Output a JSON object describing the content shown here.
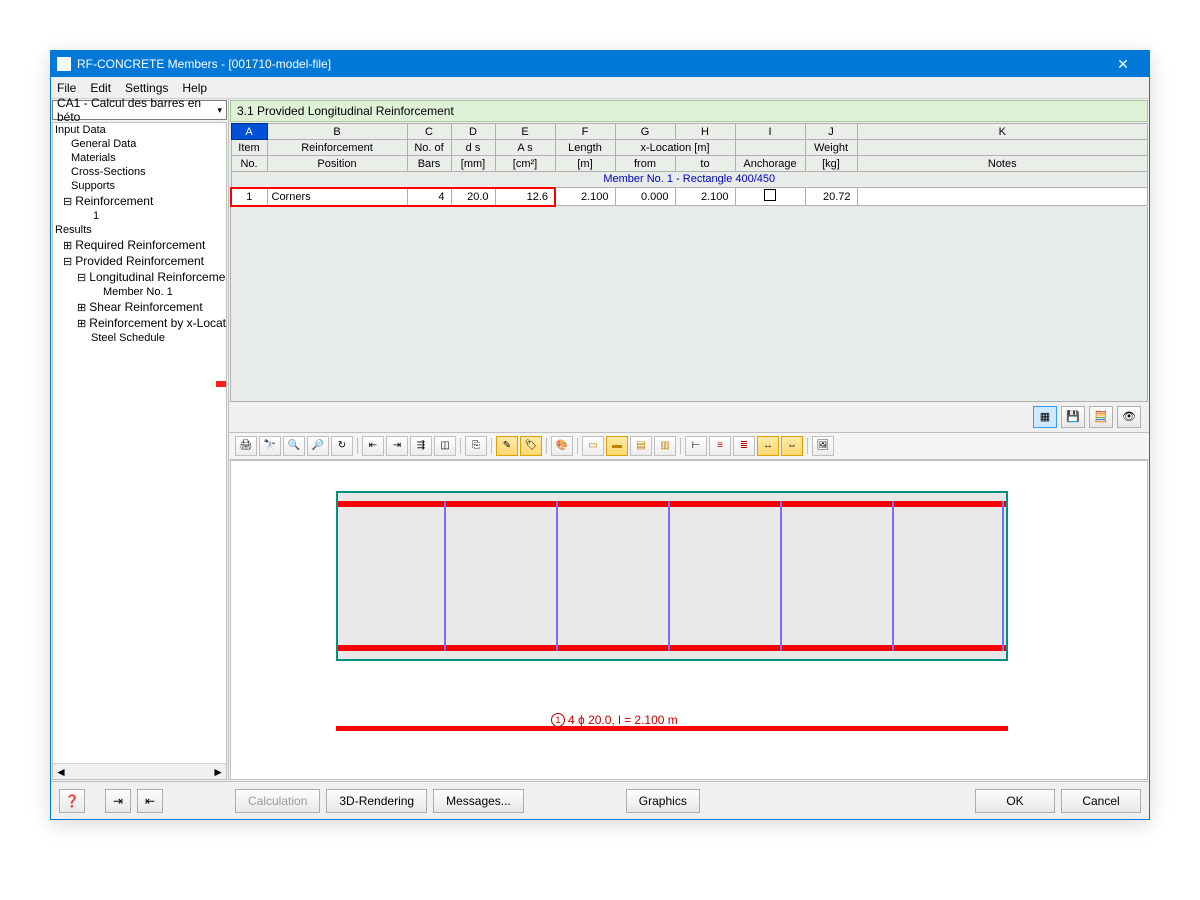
{
  "title": "RF-CONCRETE Members - [001710-model-file]",
  "menu": {
    "file": "File",
    "edit": "Edit",
    "settings": "Settings",
    "help": "Help"
  },
  "combo": "CA1 - Calcul des barres en béto",
  "tree": {
    "input_data": "Input Data",
    "general_data": "General Data",
    "materials": "Materials",
    "cross_sections": "Cross-Sections",
    "supports": "Supports",
    "reinforcement": "Reinforcement",
    "r1": "1",
    "results": "Results",
    "required": "Required Reinforcement",
    "provided": "Provided Reinforcement",
    "longitudinal": "Longitudinal Reinforcement",
    "member1": "Member No. 1",
    "shear": "Shear Reinforcement",
    "byx": "Reinforcement by x-Locatio",
    "steel": "Steel Schedule"
  },
  "section_title": "3.1 Provided Longitudinal Reinforcement",
  "columns": {
    "letters": [
      "A",
      "B",
      "C",
      "D",
      "E",
      "F",
      "G",
      "H",
      "I",
      "J",
      "K"
    ],
    "row1": [
      "Item",
      "Reinforcement",
      "No. of",
      "d s",
      "A s",
      "Length",
      "x-Location [m]",
      "",
      "",
      "Weight",
      ""
    ],
    "row2": [
      "No.",
      "Position",
      "Bars",
      "[mm]",
      "[cm²]",
      "[m]",
      "from",
      "to",
      "Anchorage",
      "[kg]",
      "Notes"
    ]
  },
  "member_header": "Member No. 1  -  Rectangle 400/450",
  "row": {
    "item": "1",
    "position": "Corners",
    "bars": "4",
    "ds": "20.0",
    "as": "12.6",
    "length": "2.100",
    "from": "0.000",
    "to": "2.100",
    "weight": "20.72"
  },
  "bar_label": "4 ϕ 20.0, l = 2.100 m",
  "bar_num": "1",
  "buttons": {
    "calculation": "Calculation",
    "rendering": "3D-Rendering",
    "messages": "Messages...",
    "graphics": "Graphics",
    "ok": "OK",
    "cancel": "Cancel"
  },
  "stirrup_positions": [
    108,
    220,
    332,
    444,
    556,
    666
  ],
  "colors": {
    "titlebar": "#0078d7",
    "rebar": "#ff0000",
    "stirrup": "#7070ff",
    "outline": "#009080"
  }
}
